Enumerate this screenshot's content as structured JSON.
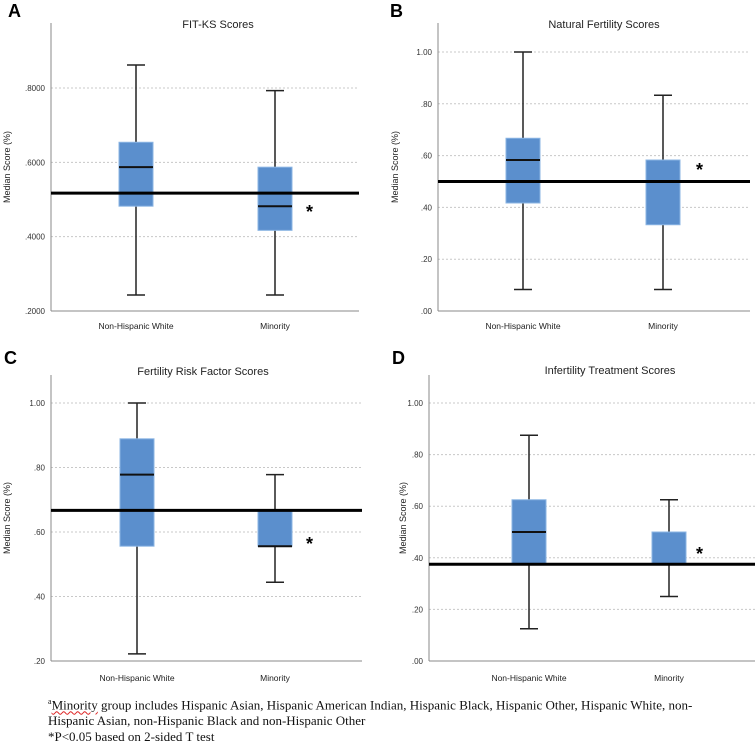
{
  "colors": {
    "box": "#5b8fcd",
    "box_edge": "#8bb5e3",
    "line": "#000000",
    "grid": "#c8c8c8"
  },
  "chart_data": [
    {
      "type": "box",
      "letter": "A",
      "title": "FIT-KS Scores",
      "ylabel": "Median Score (%)",
      "ylim": [
        0.2,
        0.97
      ],
      "yticks": [
        0.2,
        0.4,
        0.6,
        0.8
      ],
      "ytick_labels": [
        ".2000",
        ".4000",
        ".6000",
        ".8000"
      ],
      "categories": [
        "Non-Hispanic White",
        "Minority"
      ],
      "boxes": [
        {
          "min": 0.243,
          "q1": 0.482,
          "median": 0.587,
          "q3": 0.654,
          "max": 0.862
        },
        {
          "min": 0.243,
          "q1": 0.417,
          "median": 0.482,
          "q3": 0.587,
          "max": 0.793
        }
      ],
      "reference_line": 0.517,
      "significance_marker": "*"
    },
    {
      "type": "box",
      "letter": "B",
      "title": "Natural Fertility Scores",
      "ylabel": "Median Score (%)",
      "ylim": [
        0,
        1.11
      ],
      "yticks": [
        0,
        0.2,
        0.4,
        0.6,
        0.8,
        1.0
      ],
      "ytick_labels": [
        ".00",
        ".20",
        ".40",
        ".60",
        ".80",
        "1.00"
      ],
      "categories": [
        "Non-Hispanic White",
        "Minority"
      ],
      "boxes": [
        {
          "min": 0.083,
          "q1": 0.417,
          "median": 0.583,
          "q3": 0.667,
          "max": 1.0
        },
        {
          "min": 0.083,
          "q1": 0.333,
          "median": 0.5,
          "q3": 0.583,
          "max": 0.833
        }
      ],
      "reference_line": 0.5,
      "significance_marker": "*"
    },
    {
      "type": "box",
      "letter": "C",
      "title": "Fertility Risk Factor Scores",
      "ylabel": "Median Score (%)",
      "ylim": [
        0.2,
        1.09
      ],
      "yticks": [
        0.2,
        0.4,
        0.6,
        0.8,
        1.0
      ],
      "ytick_labels": [
        ".20",
        ".40",
        ".60",
        ".80",
        "1.00"
      ],
      "categories": [
        "Non-Hispanic White",
        "Minority"
      ],
      "boxes": [
        {
          "min": 0.222,
          "q1": 0.556,
          "median": 0.778,
          "q3": 0.889,
          "max": 1.0
        },
        {
          "min": 0.444,
          "q1": 0.556,
          "median": 0.556,
          "q3": 0.667,
          "max": 0.778
        }
      ],
      "reference_line": 0.667,
      "significance_marker": "*"
    },
    {
      "type": "box",
      "letter": "D",
      "title": "Infertility Treatment Scores",
      "ylabel": "Median Score (%)",
      "ylim": [
        0,
        1.1
      ],
      "yticks": [
        0,
        0.2,
        0.4,
        0.6,
        0.8,
        1.0
      ],
      "ytick_labels": [
        ".00",
        ".20",
        ".40",
        ".60",
        ".80",
        "1.00"
      ],
      "categories": [
        "Non-Hispanic White",
        "Minority"
      ],
      "boxes": [
        {
          "min": 0.125,
          "q1": 0.375,
          "median": 0.5,
          "q3": 0.625,
          "max": 0.875
        },
        {
          "min": 0.25,
          "q1": 0.375,
          "median": 0.375,
          "q3": 0.5,
          "max": 0.625
        }
      ],
      "reference_line": 0.375,
      "significance_marker": "*"
    }
  ],
  "footnote": {
    "sup": "a",
    "minority_word": "Minority",
    "line1_rest": " group includes Hispanic Asian, Hispanic American Indian, Hispanic Black, Hispanic Other, Hispanic White, non-Hispanic Asian, non-Hispanic Black and non-Hispanic Other",
    "line2": "*P<0.05 based on 2-sided T test"
  }
}
